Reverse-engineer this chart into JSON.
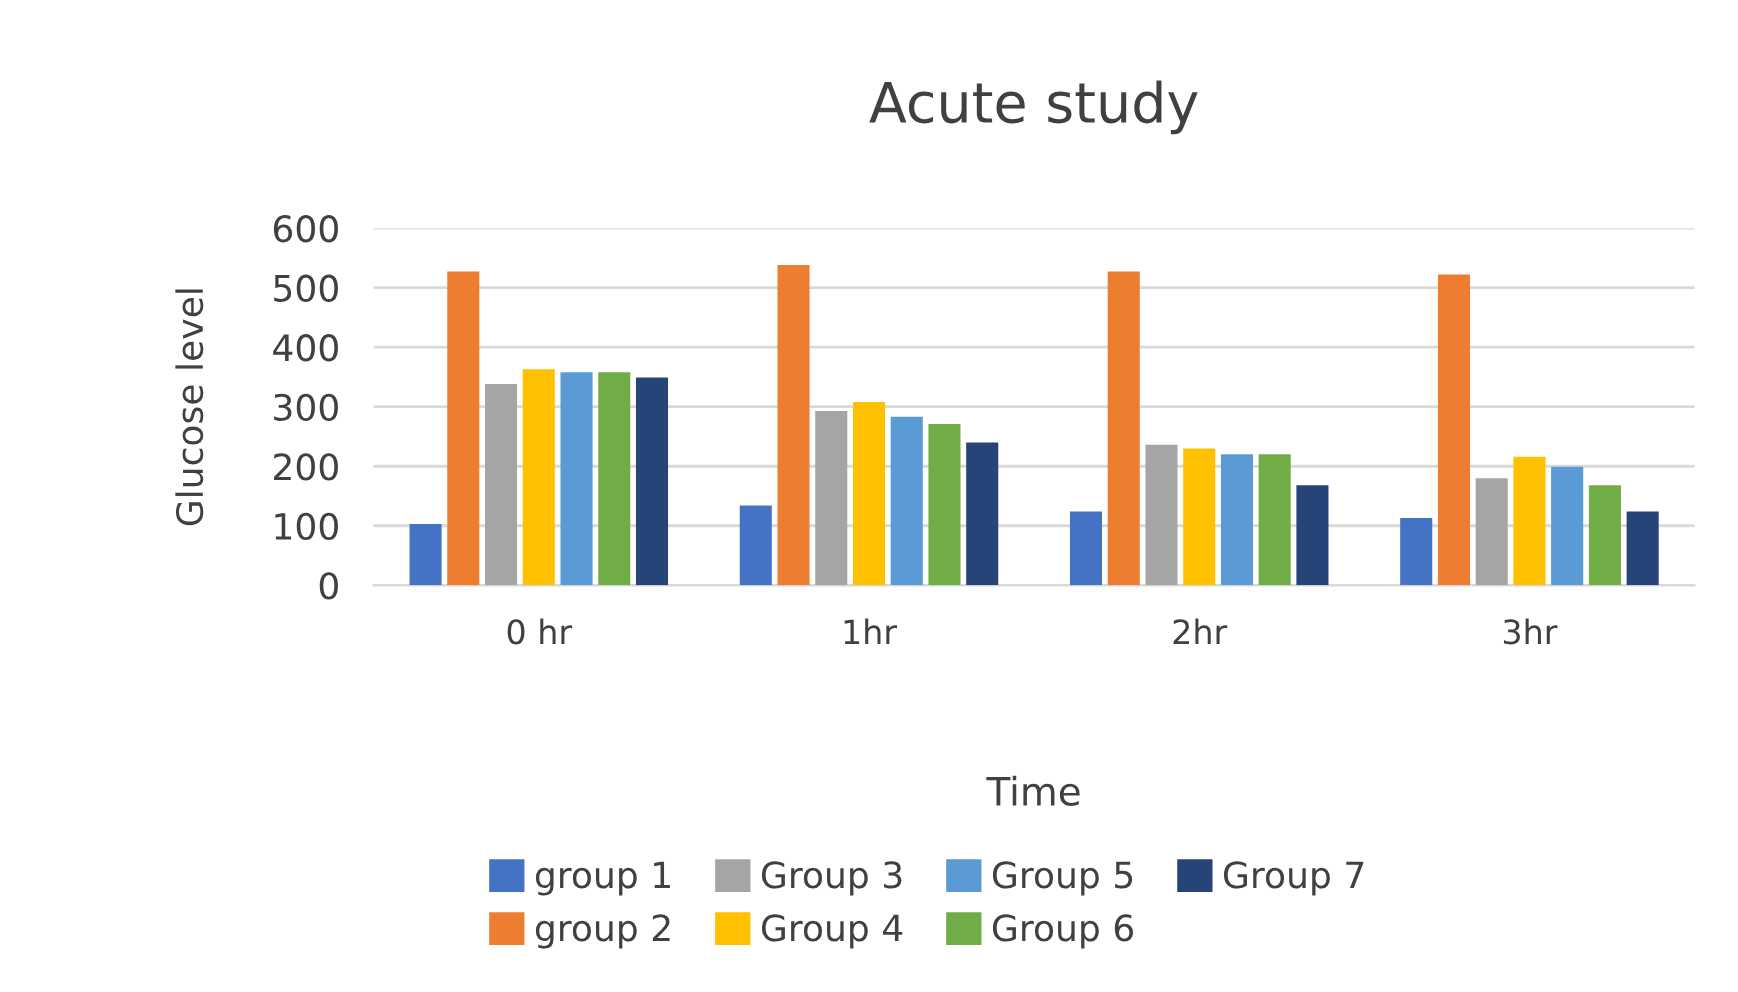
{
  "chart_data": {
    "type": "bar",
    "title": "Acute study",
    "xlabel": "Time",
    "ylabel": "Glucose level",
    "categories": [
      "0 hr",
      "1hr",
      "2hr",
      "3hr"
    ],
    "series": [
      {
        "name": "group 1",
        "color": "#4472c4",
        "values": [
          103,
          134,
          124,
          113
        ]
      },
      {
        "name": "group 2",
        "color": "#ed7d31",
        "values": [
          527,
          538,
          527,
          522
        ]
      },
      {
        "name": "Group 3",
        "color": "#a5a5a5",
        "values": [
          338,
          293,
          236,
          180
        ]
      },
      {
        "name": "Group 4",
        "color": "#ffc000",
        "values": [
          363,
          308,
          230,
          216
        ]
      },
      {
        "name": "Group 5",
        "color": "#5b9bd5",
        "values": [
          358,
          283,
          220,
          199
        ]
      },
      {
        "name": "Group 6",
        "color": "#70ad47",
        "values": [
          358,
          271,
          220,
          168
        ]
      },
      {
        "name": "Group 7",
        "color": "#264478",
        "values": [
          349,
          240,
          168,
          124
        ]
      }
    ],
    "ylim": [
      0,
      600
    ],
    "yticks": [
      0,
      100,
      200,
      300,
      400,
      500,
      600
    ],
    "grid": "y",
    "legend": "bottom"
  }
}
